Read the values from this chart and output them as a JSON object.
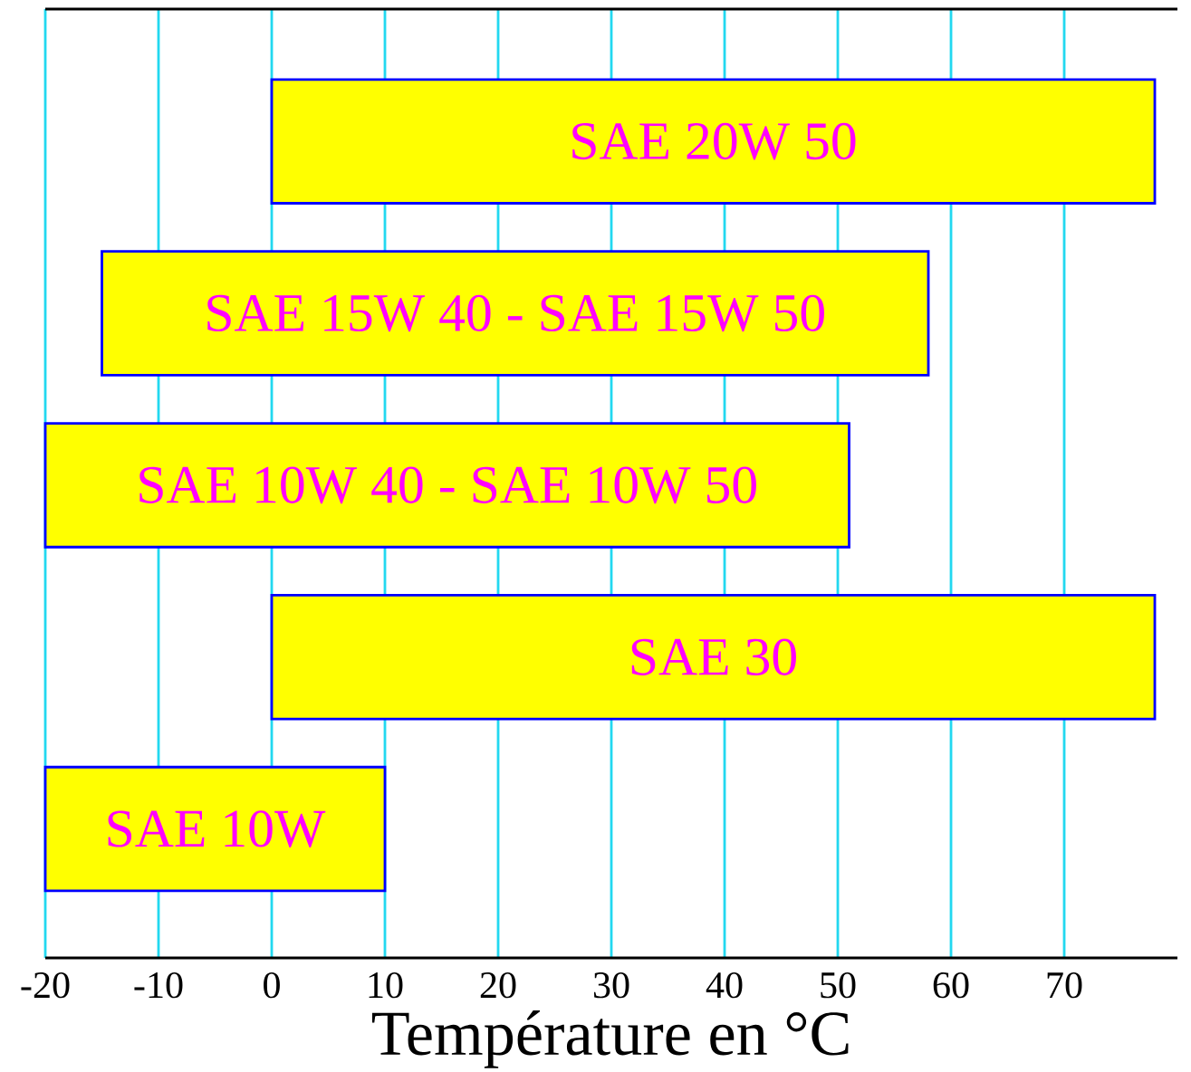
{
  "chart_data": {
    "type": "bar",
    "orientation": "horizontal",
    "xlabel": "Température en °C",
    "categories": [
      "SAE 20W 50",
      "SAE 15W 40 - SAE 15W 50",
      "SAE 10W 40 - SAE 10W 50",
      "SAE 30",
      "SAE 10W"
    ],
    "base": [
      0,
      -15,
      -20,
      0,
      -20
    ],
    "values": [
      78,
      73,
      71,
      78,
      30
    ],
    "color": "#ffff00",
    "xlim": [
      -20,
      80
    ],
    "xticks": [
      -20,
      -10,
      0,
      10,
      20,
      30,
      40,
      50,
      60,
      70
    ],
    "grid": "x"
  }
}
